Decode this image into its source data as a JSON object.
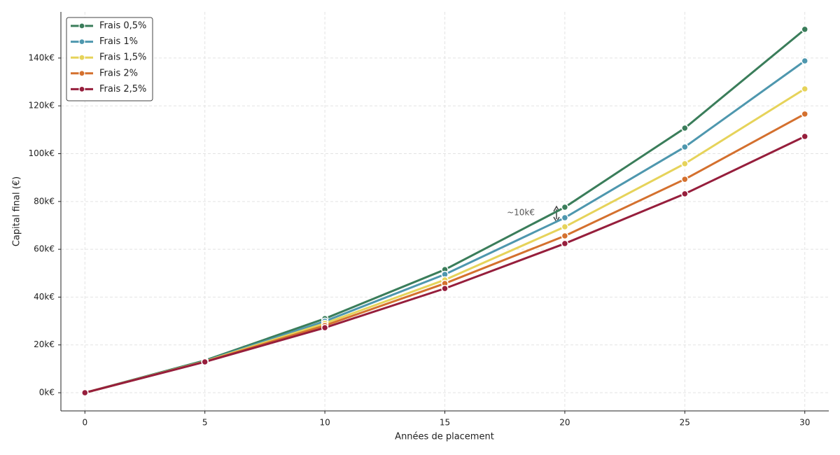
{
  "chart_data": {
    "type": "line",
    "x_label": "Années de placement",
    "y_label": "Capital final (€)",
    "x": [
      0,
      5,
      10,
      15,
      20,
      25,
      30
    ],
    "series": [
      {
        "name": "Frais 0,5%",
        "color": "#3a7d5a",
        "values": [
          0,
          13500,
          31000,
          51500,
          77600,
          110700,
          152000
        ]
      },
      {
        "name": "Frais 1%",
        "color": "#4e97ae",
        "values": [
          0,
          13200,
          29900,
          49500,
          73200,
          102800,
          138800
        ]
      },
      {
        "name": "Frais 1,5%",
        "color": "#e6d35a",
        "values": [
          0,
          13100,
          29000,
          47200,
          69400,
          95800,
          127100
        ]
      },
      {
        "name": "Frais 2%",
        "color": "#d4702e",
        "values": [
          0,
          13000,
          28100,
          45700,
          65600,
          89300,
          116600
        ]
      },
      {
        "name": "Frais 2,5%",
        "color": "#961e3c",
        "values": [
          0,
          12900,
          27200,
          43600,
          62400,
          83200,
          107200
        ]
      }
    ],
    "xlim": [
      -1,
      31
    ],
    "ylim": [
      -7600,
      159300
    ],
    "xticks": [
      0,
      5,
      10,
      15,
      20,
      25,
      30
    ],
    "yticks": [
      {
        "value": 0,
        "label": "0k€"
      },
      {
        "value": 20000,
        "label": "20k€"
      },
      {
        "value": 40000,
        "label": "40k€"
      },
      {
        "value": 60000,
        "label": "60k€"
      },
      {
        "value": 80000,
        "label": "80k€"
      },
      {
        "value": 100000,
        "label": "100k€"
      },
      {
        "value": 120000,
        "label": "120k€"
      },
      {
        "value": 140000,
        "label": "140k€"
      }
    ],
    "grid": true,
    "legend": "upper left",
    "annotation": "~10k€"
  }
}
